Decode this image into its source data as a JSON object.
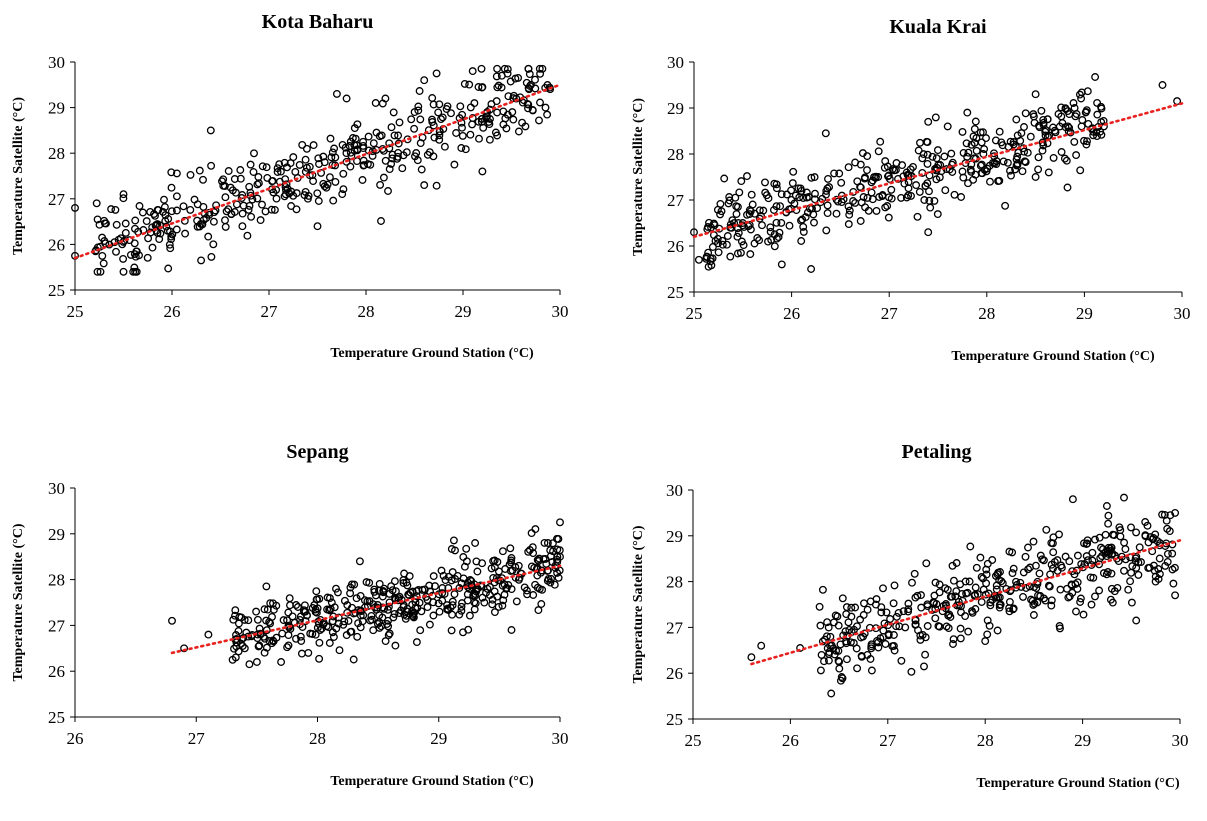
{
  "colors": {
    "marker_stroke": "#000000",
    "trendline": "#e8231f",
    "axis": "#000000",
    "background": "#ffffff"
  },
  "chart_data": [
    {
      "type": "scatter",
      "title": "Kota Baharu",
      "xlabel": "Temperature Ground Station (°C)",
      "ylabel": "Temperature Satellite (°C)",
      "xlim": [
        25,
        30
      ],
      "ylim": [
        25,
        30
      ],
      "xticks": [
        25,
        26,
        27,
        28,
        29,
        30
      ],
      "yticks": [
        25,
        26,
        27,
        28,
        29,
        30
      ],
      "grid": false,
      "marker": "open-circle",
      "trendline": {
        "style": "dotted",
        "color": "red",
        "x": [
          25,
          30
        ],
        "y": [
          25.7,
          29.5
        ]
      },
      "cloud": {
        "n": 430,
        "x_range": [
          25.2,
          29.9
        ],
        "slope": 0.76,
        "intercept": 6.7,
        "spread": 0.42,
        "seed": 11
      },
      "points": [
        [
          25.0,
          26.8
        ],
        [
          25.0,
          25.75
        ],
        [
          25.6,
          25.4
        ],
        [
          25.7,
          26.7
        ],
        [
          25.45,
          26.1
        ],
        [
          25.5,
          27.1
        ],
        [
          26.4,
          28.5
        ],
        [
          26.3,
          25.65
        ],
        [
          27.7,
          29.3
        ],
        [
          27.8,
          29.2
        ],
        [
          28.1,
          29.1
        ],
        [
          28.2,
          29.2
        ],
        [
          28.6,
          29.6
        ],
        [
          29.1,
          29.8
        ],
        [
          29.2,
          27.6
        ],
        [
          29.4,
          29.7
        ],
        [
          29.7,
          29.5
        ],
        [
          29.85,
          29.0
        ],
        [
          28.6,
          27.3
        ],
        [
          27.5,
          26.4
        ]
      ]
    },
    {
      "type": "scatter",
      "title": "Kuala Krai",
      "xlabel": "Temperature Ground Station (°C)",
      "ylabel": "Temperature Satellite (°C)",
      "xlim": [
        25,
        30
      ],
      "ylim": [
        25,
        30
      ],
      "xticks": [
        25,
        26,
        27,
        28,
        29,
        30
      ],
      "yticks": [
        25,
        26,
        27,
        28,
        29,
        30
      ],
      "grid": false,
      "marker": "open-circle",
      "trendline": {
        "style": "dotted",
        "color": "red",
        "x": [
          25,
          30
        ],
        "y": [
          26.2,
          29.1
        ]
      },
      "cloud": {
        "n": 430,
        "x_range": [
          25.1,
          29.2
        ],
        "slope": 0.58,
        "intercept": 11.7,
        "spread": 0.4,
        "seed": 23
      },
      "points": [
        [
          25.0,
          26.3
        ],
        [
          25.05,
          25.7
        ],
        [
          25.15,
          25.55
        ],
        [
          26.2,
          25.5
        ],
        [
          25.9,
          25.6
        ],
        [
          26.35,
          28.45
        ],
        [
          27.4,
          28.7
        ],
        [
          27.8,
          28.9
        ],
        [
          28.5,
          29.3
        ],
        [
          28.9,
          29.0
        ],
        [
          29.2,
          28.6
        ],
        [
          29.8,
          29.5
        ],
        [
          29.95,
          29.15
        ],
        [
          28.8,
          27.9
        ],
        [
          27.4,
          26.3
        ],
        [
          28.5,
          27.5
        ]
      ]
    },
    {
      "type": "scatter",
      "title": "Sepang",
      "xlabel": "Temperature Ground Station (°C)",
      "ylabel": "Temperature Satellite (°C)",
      "xlim": [
        26,
        30
      ],
      "ylim": [
        25,
        30
      ],
      "xticks": [
        26,
        27,
        28,
        29,
        30
      ],
      "yticks": [
        25,
        26,
        27,
        28,
        29,
        30
      ],
      "grid": false,
      "marker": "open-circle",
      "trendline": {
        "style": "dotted",
        "color": "red",
        "x": [
          26.8,
          30
        ],
        "y": [
          26.4,
          28.3
        ]
      },
      "cloud": {
        "n": 440,
        "x_range": [
          27.3,
          30.0
        ],
        "slope": 0.59,
        "intercept": 10.6,
        "spread": 0.35,
        "seed": 37
      },
      "points": [
        [
          26.8,
          27.1
        ],
        [
          26.9,
          26.5
        ],
        [
          27.1,
          26.8
        ],
        [
          27.3,
          26.25
        ],
        [
          27.5,
          26.2
        ],
        [
          27.7,
          26.2
        ],
        [
          28.35,
          28.4
        ],
        [
          29.3,
          28.8
        ],
        [
          29.9,
          28.8
        ],
        [
          30.0,
          29.25
        ],
        [
          30.0,
          28.5
        ],
        [
          29.6,
          26.9
        ],
        [
          29.2,
          26.85
        ]
      ]
    },
    {
      "type": "scatter",
      "title": "Petaling",
      "xlabel": "Temperature Ground Station (°C)",
      "ylabel": "Temperature Satellite (°C)",
      "xlim": [
        25,
        30
      ],
      "ylim": [
        25,
        30
      ],
      "xticks": [
        25,
        26,
        27,
        28,
        29,
        30
      ],
      "yticks": [
        25,
        26,
        27,
        28,
        29,
        30
      ],
      "grid": false,
      "marker": "open-circle",
      "trendline": {
        "style": "dotted",
        "color": "red",
        "x": [
          25.6,
          30
        ],
        "y": [
          26.2,
          28.9
        ]
      },
      "cloud": {
        "n": 420,
        "x_range": [
          26.3,
          29.95
        ],
        "slope": 0.62,
        "intercept": 10.3,
        "spread": 0.45,
        "seed": 51
      },
      "points": [
        [
          25.6,
          26.35
        ],
        [
          25.7,
          26.6
        ],
        [
          26.1,
          26.55
        ],
        [
          26.3,
          27.45
        ],
        [
          26.5,
          26.25
        ],
        [
          28.9,
          29.8
        ],
        [
          29.25,
          29.65
        ],
        [
          29.9,
          29.45
        ],
        [
          29.95,
          29.5
        ],
        [
          29.95,
          27.7
        ],
        [
          29.55,
          27.15
        ],
        [
          29.75,
          28.0
        ],
        [
          28.0,
          26.7
        ]
      ]
    }
  ]
}
